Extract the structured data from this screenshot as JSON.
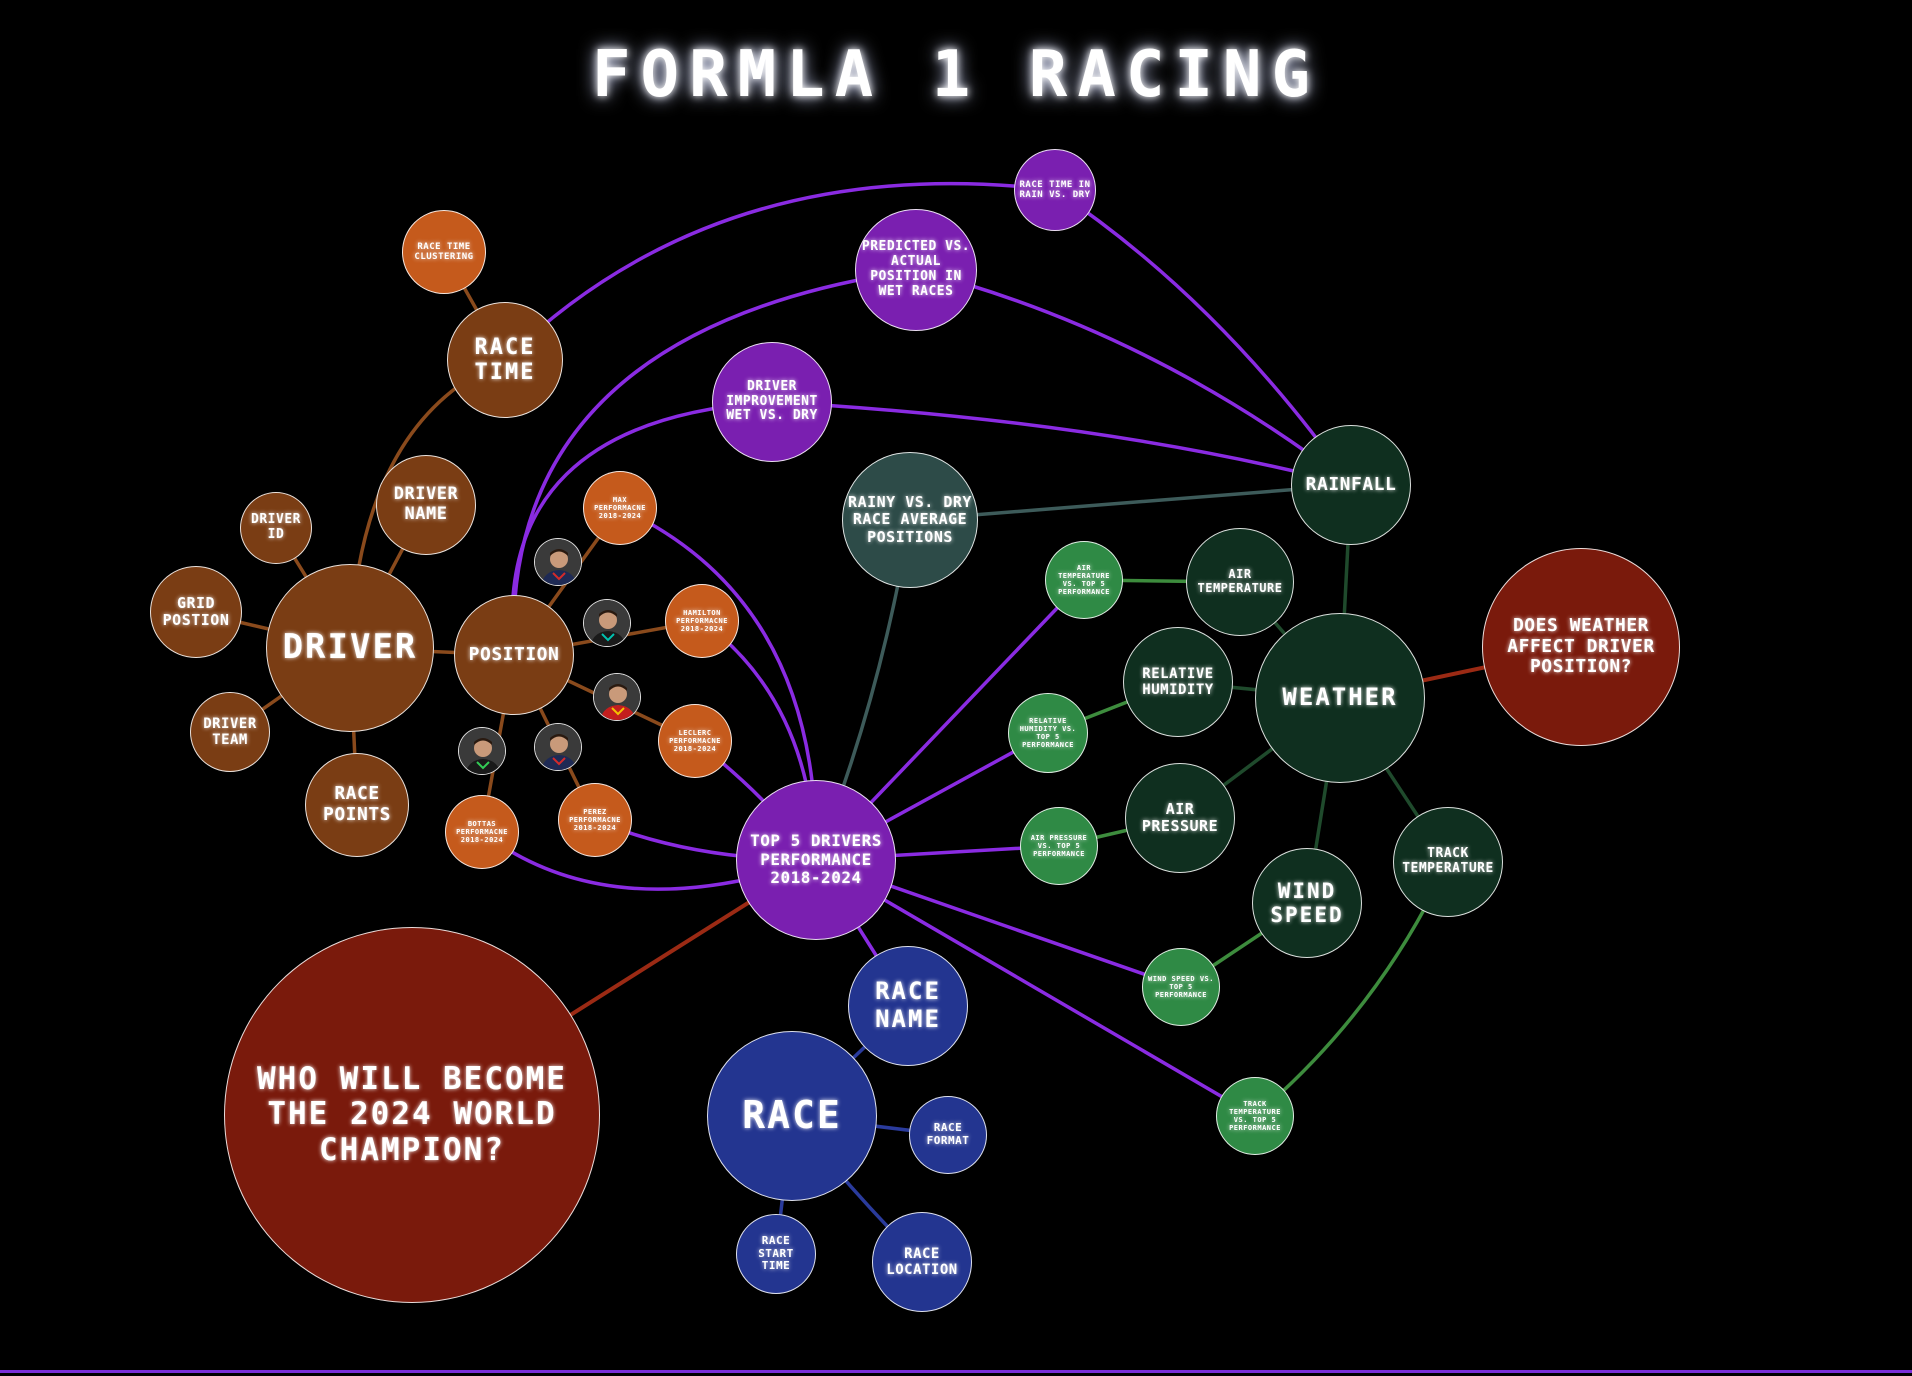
{
  "title": "FORMLA 1 RACING",
  "colors": {
    "brown": "#7a3d14",
    "orange": "#c55a1c",
    "purple": "#7a1fb0",
    "teal": "#2d4b48",
    "darkgreen": "#0f2f1f",
    "green": "#2f8a45",
    "red": "#7a1a0c",
    "blue": "#233590",
    "edge_purple": "#8a2be2",
    "edge_brown": "#8a4a1c",
    "edge_green": "#3d8c3d",
    "edge_darkgreen": "#1f4a2c",
    "edge_blue": "#2a3b9c",
    "edge_red": "#9b2a14",
    "edge_teal": "#3d5b5a"
  },
  "nodes": [
    {
      "id": "driver",
      "label": "DRIVER",
      "color": "brown"
    },
    {
      "id": "race_time",
      "label": "RACE TIME",
      "color": "brown"
    },
    {
      "id": "race_time_clustering",
      "label": "RACE TIME CLUSTERING",
      "color": "orange"
    },
    {
      "id": "driver_name",
      "label": "DRIVER NAME",
      "color": "brown"
    },
    {
      "id": "driver_id",
      "label": "DRIVER ID",
      "color": "brown"
    },
    {
      "id": "grid_position",
      "label": "GRID POSTION",
      "color": "brown"
    },
    {
      "id": "driver_team",
      "label": "DRIVER TEAM",
      "color": "brown"
    },
    {
      "id": "race_points",
      "label": "RACE POINTS",
      "color": "brown"
    },
    {
      "id": "position",
      "label": "POSITION",
      "color": "brown"
    },
    {
      "id": "max_perf",
      "label": "MAX PERFORMACNE 2018-2024",
      "color": "orange"
    },
    {
      "id": "hamilton_perf",
      "label": "HAMILTON PERFORMACNE 2018-2024",
      "color": "orange"
    },
    {
      "id": "leclerc_perf",
      "label": "LECLERC PERFORMACNE 2018-2024",
      "color": "orange"
    },
    {
      "id": "perez_perf",
      "label": "PEREZ PERFORMACNE 2018-2024",
      "color": "orange"
    },
    {
      "id": "bottas_perf",
      "label": "BOTTAS PERFORMACNE 2018-2024",
      "color": "orange"
    },
    {
      "id": "race_time_rain",
      "label": "RACE TIME IN RAIN VS. DRY",
      "color": "purple"
    },
    {
      "id": "predicted_actual",
      "label": "PREDICTED VS. ACTUAL POSITION IN WET RACES",
      "color": "purple"
    },
    {
      "id": "driver_improvement",
      "label": "DRIVER IMPROVEMENT WET VS. DRY",
      "color": "purple"
    },
    {
      "id": "rainy_dry",
      "label": "RAINY VS. DRY RACE AVERAGE POSITIONS",
      "color": "teal"
    },
    {
      "id": "top5",
      "label": "TOP 5 DRIVERS PERFORMANCE 2018-2024",
      "color": "purple"
    },
    {
      "id": "rainfall",
      "label": "RAINFALL",
      "color": "darkgreen"
    },
    {
      "id": "air_temp",
      "label": "AIR TEMPERATURE",
      "color": "darkgreen"
    },
    {
      "id": "air_temp_top5",
      "label": "AIR TEMPERATURE VS. TOP 5 PERFORMANCE",
      "color": "green"
    },
    {
      "id": "rel_humidity",
      "label": "RELATIVE HUMIDITY",
      "color": "darkgreen"
    },
    {
      "id": "humidity_top5",
      "label": "RELATIVE HUMIDITY VS. TOP 5 PERFORMANCE",
      "color": "green"
    },
    {
      "id": "weather",
      "label": "WEATHER",
      "color": "darkgreen"
    },
    {
      "id": "air_pressure",
      "label": "AIR PRESSURE",
      "color": "darkgreen"
    },
    {
      "id": "pressure_top5",
      "label": "AIR PRESSURE VS. TOP 5 PERFORMANCE",
      "color": "green"
    },
    {
      "id": "wind_speed",
      "label": "WIND SPEED",
      "color": "darkgreen"
    },
    {
      "id": "wind_top5",
      "label": "WIND SPEED VS. TOP 5 PERFORMANCE",
      "color": "green"
    },
    {
      "id": "track_temp",
      "label": "TRACK TEMPERATURE",
      "color": "darkgreen"
    },
    {
      "id": "track_top5",
      "label": "TRACK TEMPERATURE VS. TOP 5 PERFORMANCE",
      "color": "green"
    },
    {
      "id": "weather_question",
      "label": "DOES WEATHER AFFECT DRIVER POSITION?",
      "color": "red"
    },
    {
      "id": "champion_question",
      "label": "WHO WILL BECOME THE 2024 WORLD CHAMPION?",
      "color": "red"
    },
    {
      "id": "race_name",
      "label": "RACE NAME",
      "color": "blue"
    },
    {
      "id": "race",
      "label": "RACE",
      "color": "blue"
    },
    {
      "id": "race_format",
      "label": "RACE FORMAT",
      "color": "blue"
    },
    {
      "id": "race_start",
      "label": "RACE START TIME",
      "color": "blue"
    },
    {
      "id": "race_location",
      "label": "RACE LOCATION",
      "color": "blue"
    }
  ],
  "edges": [
    {
      "from": "driver",
      "to": "race_time",
      "color": "edge_brown"
    },
    {
      "from": "race_time",
      "to": "race_time_clustering",
      "color": "edge_brown"
    },
    {
      "from": "driver",
      "to": "driver_name",
      "color": "edge_brown"
    },
    {
      "from": "driver",
      "to": "driver_id",
      "color": "edge_brown"
    },
    {
      "from": "driver",
      "to": "grid_position",
      "color": "edge_brown"
    },
    {
      "from": "driver",
      "to": "driver_team",
      "color": "edge_brown"
    },
    {
      "from": "driver",
      "to": "race_points",
      "color": "edge_brown"
    },
    {
      "from": "driver",
      "to": "position",
      "color": "edge_brown"
    },
    {
      "from": "position",
      "to": "max_perf",
      "color": "edge_brown"
    },
    {
      "from": "position",
      "to": "hamilton_perf",
      "color": "edge_brown"
    },
    {
      "from": "position",
      "to": "leclerc_perf",
      "color": "edge_brown"
    },
    {
      "from": "position",
      "to": "perez_perf",
      "color": "edge_brown"
    },
    {
      "from": "position",
      "to": "bottas_perf",
      "color": "edge_brown"
    },
    {
      "from": "max_perf",
      "to": "top5",
      "color": "edge_purple"
    },
    {
      "from": "hamilton_perf",
      "to": "top5",
      "color": "edge_purple"
    },
    {
      "from": "leclerc_perf",
      "to": "top5",
      "color": "edge_purple"
    },
    {
      "from": "perez_perf",
      "to": "top5",
      "color": "edge_purple"
    },
    {
      "from": "bottas_perf",
      "to": "top5",
      "color": "edge_purple"
    },
    {
      "from": "race_time",
      "to": "race_time_rain",
      "color": "edge_purple"
    },
    {
      "from": "race_time_rain",
      "to": "rainfall",
      "color": "edge_purple"
    },
    {
      "from": "position",
      "to": "predicted_actual",
      "color": "edge_purple"
    },
    {
      "from": "predicted_actual",
      "to": "rainfall",
      "color": "edge_purple"
    },
    {
      "from": "position",
      "to": "driver_improvement",
      "color": "edge_purple"
    },
    {
      "from": "driver_improvement",
      "to": "rainfall",
      "color": "edge_purple"
    },
    {
      "from": "rainy_dry",
      "to": "rainfall",
      "color": "edge_teal"
    },
    {
      "from": "rainy_dry",
      "to": "top5",
      "color": "edge_teal"
    },
    {
      "from": "rainfall",
      "to": "weather",
      "color": "edge_darkgreen"
    },
    {
      "from": "air_temp",
      "to": "weather",
      "color": "edge_darkgreen"
    },
    {
      "from": "rel_humidity",
      "to": "weather",
      "color": "edge_darkgreen"
    },
    {
      "from": "air_pressure",
      "to": "weather",
      "color": "edge_darkgreen"
    },
    {
      "from": "wind_speed",
      "to": "weather",
      "color": "edge_darkgreen"
    },
    {
      "from": "track_temp",
      "to": "weather",
      "color": "edge_darkgreen"
    },
    {
      "from": "air_temp",
      "to": "air_temp_top5",
      "color": "edge_green"
    },
    {
      "from": "rel_humidity",
      "to": "humidity_top5",
      "color": "edge_green"
    },
    {
      "from": "air_pressure",
      "to": "pressure_top5",
      "color": "edge_green"
    },
    {
      "from": "wind_speed",
      "to": "wind_top5",
      "color": "edge_green"
    },
    {
      "from": "track_temp",
      "to": "track_top5",
      "color": "edge_green"
    },
    {
      "from": "top5",
      "to": "air_temp_top5",
      "color": "edge_purple"
    },
    {
      "from": "top5",
      "to": "humidity_top5",
      "color": "edge_purple"
    },
    {
      "from": "top5",
      "to": "pressure_top5",
      "color": "edge_purple"
    },
    {
      "from": "top5",
      "to": "wind_top5",
      "color": "edge_purple"
    },
    {
      "from": "top5",
      "to": "track_top5",
      "color": "edge_purple"
    },
    {
      "from": "weather",
      "to": "weather_question",
      "color": "edge_red"
    },
    {
      "from": "top5",
      "to": "champion_question",
      "color": "edge_red"
    },
    {
      "from": "top5",
      "to": "race_name",
      "color": "edge_purple"
    },
    {
      "from": "race",
      "to": "race_name",
      "color": "edge_blue"
    },
    {
      "from": "race",
      "to": "race_format",
      "color": "edge_blue"
    },
    {
      "from": "race",
      "to": "race_start",
      "color": "edge_blue"
    },
    {
      "from": "race",
      "to": "race_location",
      "color": "edge_blue"
    }
  ],
  "driver_photos": [
    {
      "id": "photo_max",
      "name": "max-photo",
      "suit": "#1e2a55",
      "accent": "#d42a2a"
    },
    {
      "id": "photo_hamilton",
      "name": "hamilton-photo",
      "suit": "#1a1a1a",
      "accent": "#00c2b0"
    },
    {
      "id": "photo_leclerc",
      "name": "leclerc-photo",
      "suit": "#c41e1e",
      "accent": "#f2c200"
    },
    {
      "id": "photo_perez",
      "name": "perez-photo",
      "suit": "#1e2a55",
      "accent": "#d42a2a"
    },
    {
      "id": "photo_bottas",
      "name": "bottas-photo",
      "suit": "#1a1a1a",
      "accent": "#33cc55"
    }
  ]
}
